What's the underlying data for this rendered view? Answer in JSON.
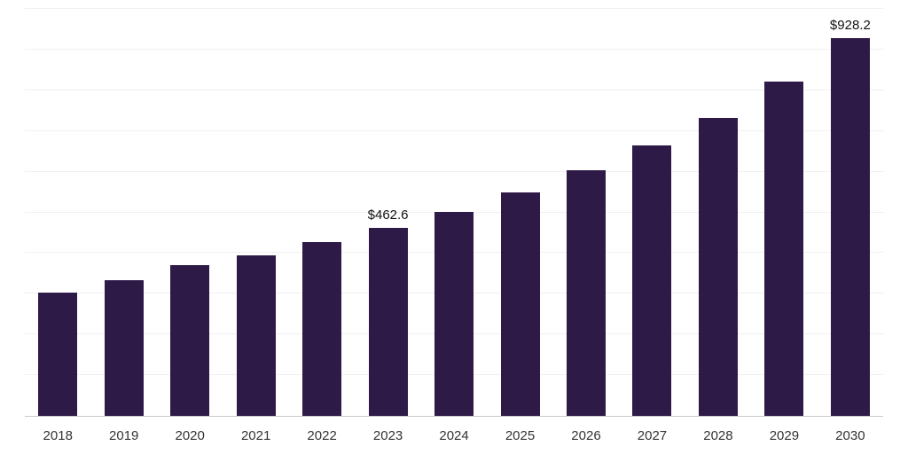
{
  "chart_data": {
    "type": "bar",
    "title": "",
    "xlabel": "",
    "ylabel": "",
    "categories": [
      "2018",
      "2019",
      "2020",
      "2021",
      "2022",
      "2023",
      "2024",
      "2025",
      "2026",
      "2027",
      "2028",
      "2029",
      "2030"
    ],
    "values": [
      302,
      333,
      370,
      395,
      427,
      462.6,
      501,
      550,
      603,
      665,
      733,
      822,
      928.2
    ],
    "data_labels": [
      {
        "category": "2023",
        "text": "$462.6"
      },
      {
        "category": "2030",
        "text": "$928.2"
      }
    ],
    "ylim": [
      0,
      1000
    ],
    "grid": true,
    "grid_step": 100,
    "legend": "none",
    "bar_color": "#2e1a47",
    "grid_color": "#f0f0f0",
    "axis_line_color": "#c9c9c9",
    "tick_label_color": "#333333",
    "value_label_color": "#111111"
  }
}
